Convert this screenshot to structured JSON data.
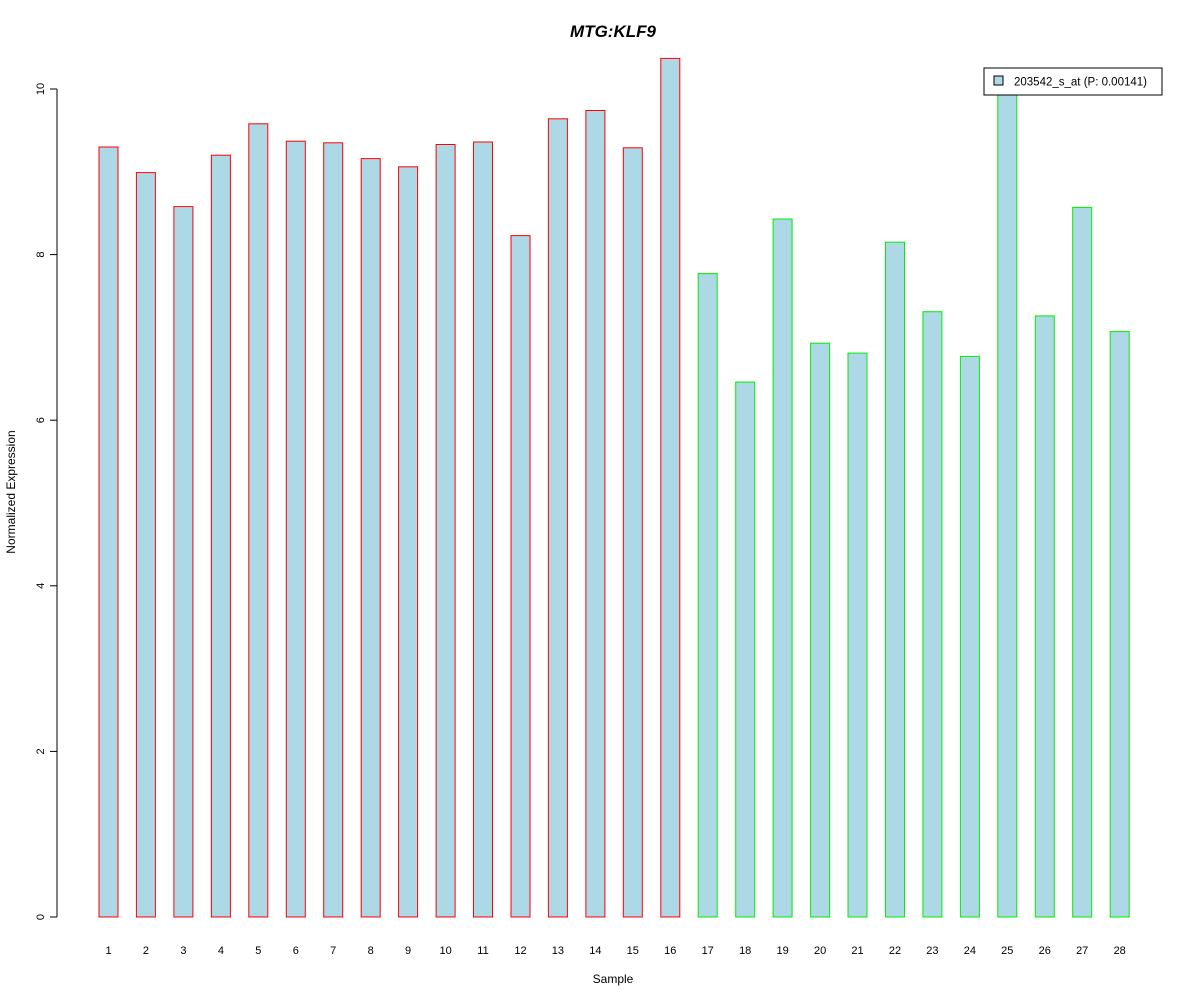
{
  "chart_data": {
    "type": "bar",
    "title": "MTG:KLF9",
    "title_color": "#0000cc",
    "xlabel": "Sample",
    "ylabel": "Normalized Expression",
    "ylim": [
      0,
      10.4
    ],
    "yticks": [
      0,
      2,
      4,
      6,
      8,
      10
    ],
    "grid": false,
    "legend": {
      "position": "top-right",
      "entries": [
        {
          "label": "203542_s_at (P: 0.00141)",
          "fill": "#add8e6"
        }
      ]
    },
    "bar_fill": "#add8e6",
    "group_colors": [
      "#ff0000",
      "#00ee00"
    ],
    "categories": [
      "1",
      "2",
      "3",
      "4",
      "5",
      "6",
      "7",
      "8",
      "9",
      "10",
      "11",
      "12",
      "13",
      "14",
      "15",
      "16",
      "17",
      "18",
      "19",
      "20",
      "21",
      "22",
      "23",
      "24",
      "25",
      "26",
      "27",
      "28"
    ],
    "values": [
      9.3,
      8.99,
      8.58,
      9.2,
      9.58,
      9.37,
      9.35,
      9.16,
      9.06,
      9.33,
      9.36,
      8.23,
      9.64,
      9.74,
      9.29,
      10.37,
      7.77,
      6.46,
      8.43,
      6.93,
      6.81,
      8.15,
      7.31,
      6.77,
      10.02,
      7.26,
      8.57,
      7.07
    ],
    "groups": [
      0,
      0,
      0,
      0,
      0,
      0,
      0,
      0,
      0,
      0,
      0,
      0,
      0,
      0,
      0,
      0,
      1,
      1,
      1,
      1,
      1,
      1,
      1,
      1,
      1,
      1,
      1,
      1
    ]
  }
}
